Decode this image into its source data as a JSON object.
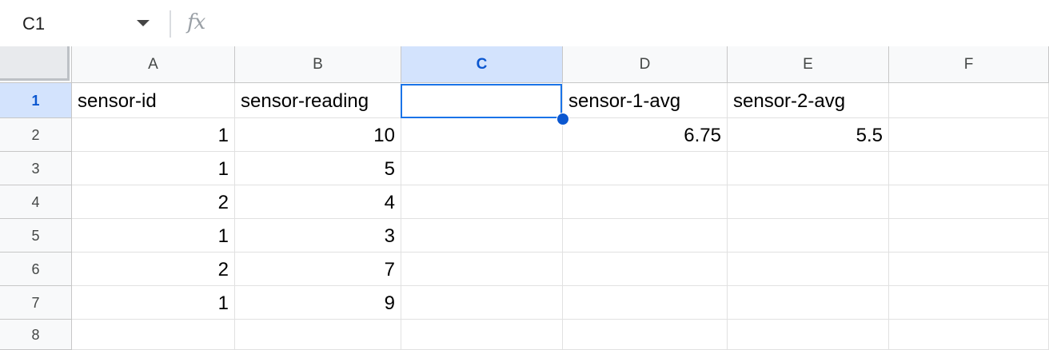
{
  "formula_bar": {
    "cell_ref": "C1",
    "fx_label": "fx",
    "formula": ""
  },
  "columns": [
    "A",
    "B",
    "C",
    "D",
    "E",
    "F"
  ],
  "selected_column": "C",
  "rows": [
    "1",
    "2",
    "3",
    "4",
    "5",
    "6",
    "7",
    "8"
  ],
  "selected_row": "1",
  "cells": {
    "A1": "sensor-id",
    "B1": "sensor-reading",
    "C1": "",
    "D1": "sensor-1-avg",
    "E1": "sensor-2-avg",
    "F1": "",
    "A2": "1",
    "B2": "10",
    "D2": "6.75",
    "E2": "5.5",
    "A3": "1",
    "B3": "5",
    "A4": "2",
    "B4": "4",
    "A5": "1",
    "B5": "3",
    "A6": "2",
    "B6": "7",
    "A7": "1",
    "B7": "9"
  },
  "colors": {
    "selection_border": "#1a73e8",
    "selected_header_bg": "#d3e3fd",
    "header_bg": "#f8f9fa"
  }
}
